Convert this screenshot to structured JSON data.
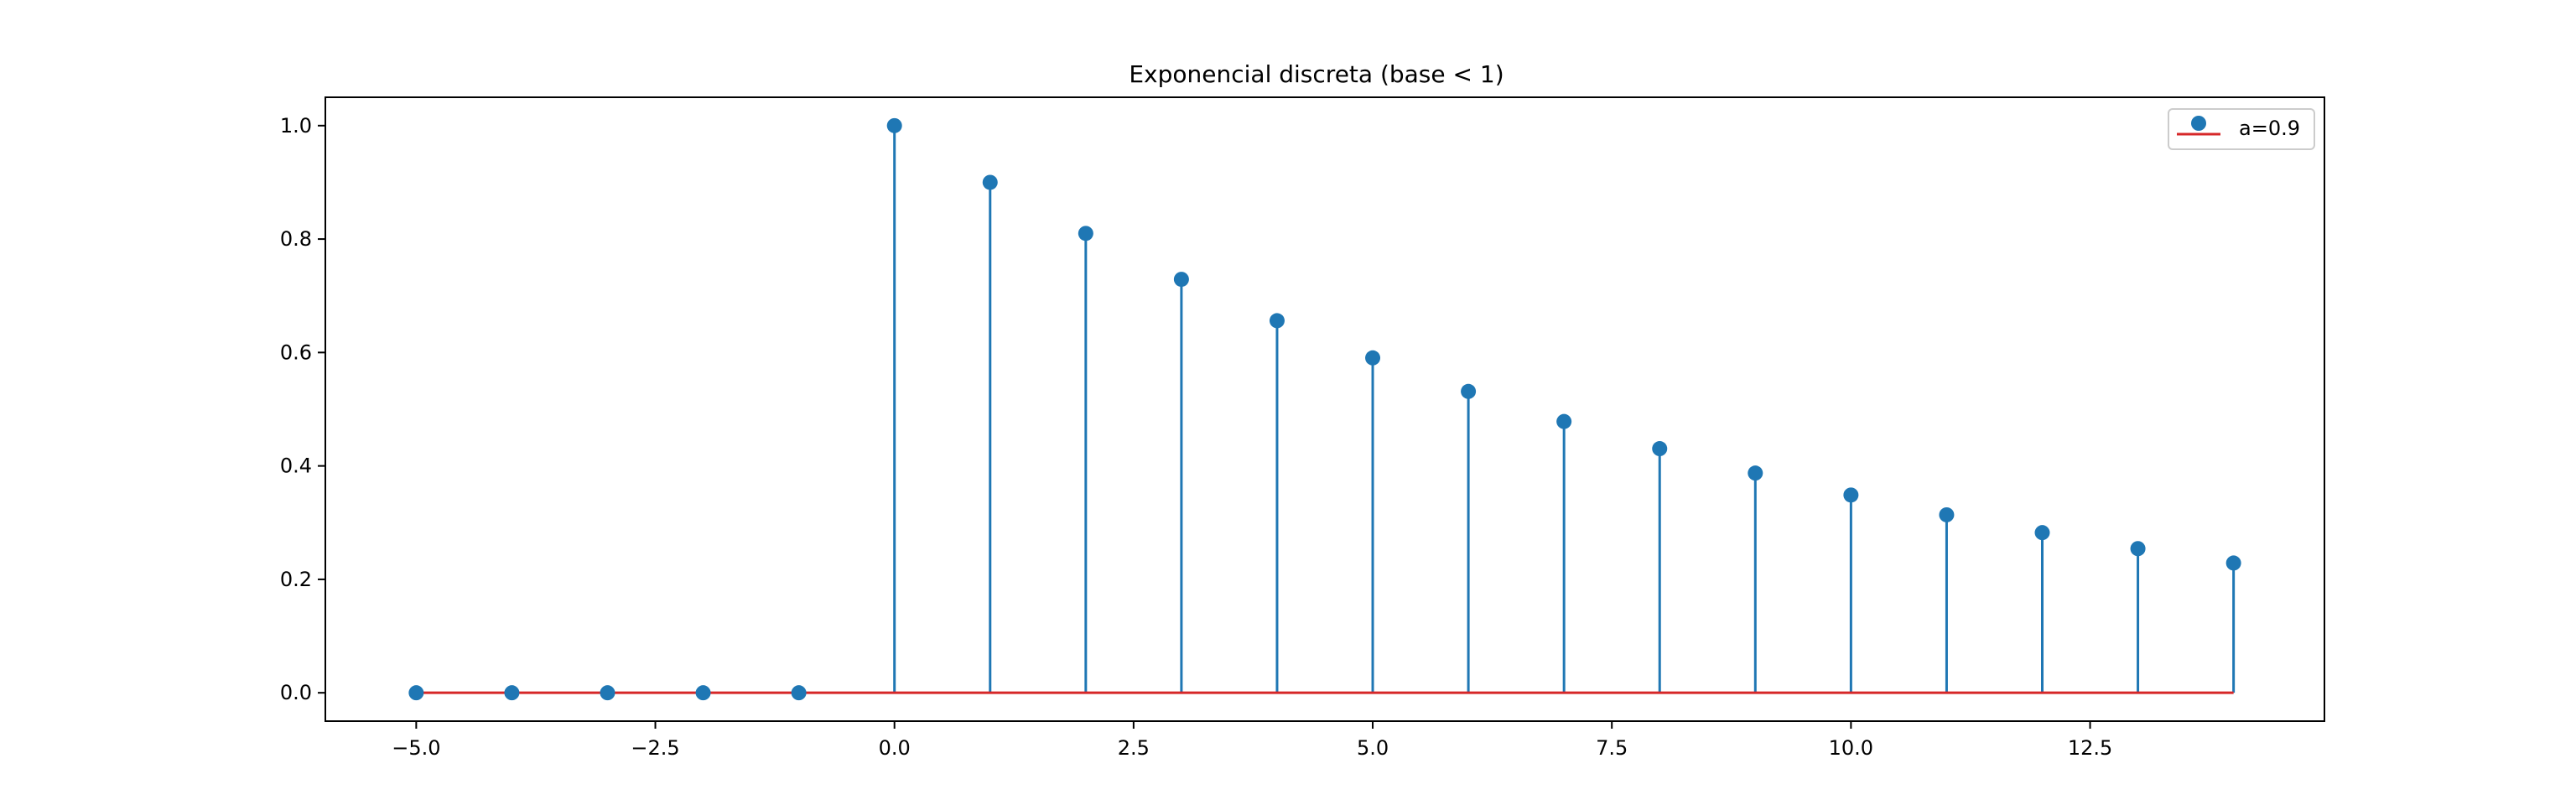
{
  "chart_data": {
    "type": "stem",
    "title": "Exponencial discreta (base < 1)",
    "xlabel": "",
    "ylabel": "",
    "xlim": [
      -5.95,
      14.95
    ],
    "ylim": [
      -0.05,
      1.05
    ],
    "x_ticks": [
      -5.0,
      -2.5,
      0.0,
      2.5,
      5.0,
      7.5,
      10.0,
      12.5
    ],
    "x_tick_labels": [
      "−5.0",
      "−2.5",
      "0.0",
      "2.5",
      "5.0",
      "7.5",
      "10.0",
      "12.5"
    ],
    "y_ticks": [
      0.0,
      0.2,
      0.4,
      0.6,
      0.8,
      1.0
    ],
    "y_tick_labels": [
      "0.0",
      "0.2",
      "0.4",
      "0.6",
      "0.8",
      "1.0"
    ],
    "grid": false,
    "legend_position": "top-right",
    "series": [
      {
        "name": "a=0.9",
        "x": [
          -5,
          -4,
          -3,
          -2,
          -1,
          0,
          1,
          2,
          3,
          4,
          5,
          6,
          7,
          8,
          9,
          10,
          11,
          12,
          13,
          14
        ],
        "values": [
          0,
          0,
          0,
          0,
          0,
          1.0,
          0.9,
          0.81,
          0.729,
          0.6561,
          0.5905,
          0.5314,
          0.4783,
          0.4305,
          0.3874,
          0.3487,
          0.3138,
          0.2824,
          0.2542,
          0.2288
        ],
        "marker_color": "#1f77b4",
        "stem_color": "#1f77b4"
      }
    ],
    "baseline_value": 0,
    "baseline_color": "#d62728",
    "axes_color": "#000000"
  }
}
